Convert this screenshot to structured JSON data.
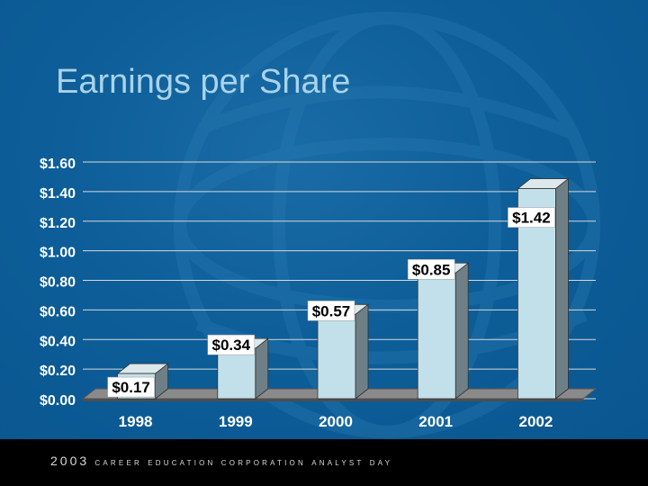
{
  "slide": {
    "title": "Earnings per Share",
    "footer_year": "2003",
    "footer_text": "CAREER EDUCATION CORPORATION ANALYST DAY"
  },
  "colors": {
    "background": "#0b5c97",
    "title": "#a9d3ea",
    "bar_front": "#c2e0ea",
    "bar_side": "#6f7f86",
    "bar_top": "#dde8ec",
    "gridline": "#d8d8d8",
    "axis_text": "#ffffff",
    "label_bg": "#ffffff",
    "label_text": "#000000",
    "footer_bg": "#000000"
  },
  "chart_data": {
    "type": "bar",
    "title": "Earnings per Share",
    "categories": [
      "1998",
      "1999",
      "2000",
      "2001",
      "2002"
    ],
    "values": [
      0.17,
      0.34,
      0.57,
      0.85,
      1.42
    ],
    "data_labels": [
      "$0.17",
      "$0.34",
      "$0.57",
      "$0.85",
      "$1.42"
    ],
    "ylim": [
      0,
      1.6
    ],
    "yticks": [
      0,
      0.2,
      0.4,
      0.6,
      0.8,
      1.0,
      1.2,
      1.4,
      1.6
    ],
    "ytick_labels": [
      "$0.00",
      "$0.20",
      "$0.40",
      "$0.60",
      "$0.80",
      "$1.00",
      "$1.20",
      "$1.40",
      "$1.60"
    ],
    "xlabel": "",
    "ylabel": "",
    "grid": true,
    "legend": "none",
    "style": "3d-column"
  }
}
